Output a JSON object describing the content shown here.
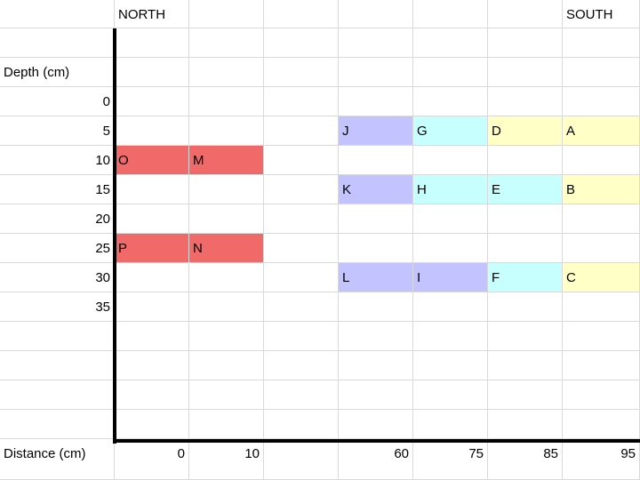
{
  "headers": {
    "north": "NORTH",
    "south": "SOUTH"
  },
  "depth_label": "Depth (cm)",
  "distance_label": "Distance (cm)",
  "depth_ticks": [
    "0",
    "5",
    "10",
    "15",
    "20",
    "25",
    "30",
    "35"
  ],
  "distance_ticks": [
    {
      "col": 2,
      "label": "0"
    },
    {
      "col": 3,
      "label": "10"
    },
    {
      "col": 5,
      "label": "60"
    },
    {
      "col": 6,
      "label": "75"
    },
    {
      "col": 7,
      "label": "85"
    },
    {
      "col": 8,
      "label": "95"
    }
  ],
  "colors": {
    "red": "#f06a6a",
    "purple": "#c3c3ff",
    "cyan": "#c7ffff",
    "yellow": "#ffffc6"
  },
  "fills": [
    {
      "row": 5,
      "col": 5,
      "color": "#c3c3ff"
    },
    {
      "row": 5,
      "col": 6,
      "color": "#c7ffff"
    },
    {
      "row": 5,
      "col": 7,
      "color": "#ffffc6"
    },
    {
      "row": 5,
      "col": 8,
      "color": "#ffffc6"
    },
    {
      "row": 6,
      "col": 2,
      "color": "#f06a6a"
    },
    {
      "row": 6,
      "col": 3,
      "color": "#f06a6a"
    },
    {
      "row": 7,
      "col": 5,
      "color": "#c3c3ff"
    },
    {
      "row": 7,
      "col": 6,
      "color": "#c7ffff"
    },
    {
      "row": 7,
      "col": 7,
      "color": "#c7ffff"
    },
    {
      "row": 7,
      "col": 8,
      "color": "#ffffc6"
    },
    {
      "row": 9,
      "col": 2,
      "color": "#f06a6a"
    },
    {
      "row": 9,
      "col": 3,
      "color": "#f06a6a"
    },
    {
      "row": 10,
      "col": 5,
      "color": "#c3c3ff"
    },
    {
      "row": 10,
      "col": 6,
      "color": "#c3c3ff"
    },
    {
      "row": 10,
      "col": 7,
      "color": "#c7ffff"
    },
    {
      "row": 10,
      "col": 8,
      "color": "#ffffc6"
    }
  ],
  "markers": [
    {
      "row": 5,
      "col": 5,
      "label": "J"
    },
    {
      "row": 5,
      "col": 6,
      "label": "G"
    },
    {
      "row": 5,
      "col": 7,
      "label": "D"
    },
    {
      "row": 5,
      "col": 8,
      "label": "A"
    },
    {
      "row": 6,
      "col": 2,
      "label": "O"
    },
    {
      "row": 6,
      "col": 3,
      "label": "M"
    },
    {
      "row": 7,
      "col": 5,
      "label": "K"
    },
    {
      "row": 7,
      "col": 6,
      "label": "H"
    },
    {
      "row": 7,
      "col": 7,
      "label": "E"
    },
    {
      "row": 7,
      "col": 8,
      "label": "B"
    },
    {
      "row": 9,
      "col": 2,
      "label": "P"
    },
    {
      "row": 9,
      "col": 3,
      "label": "N"
    },
    {
      "row": 10,
      "col": 5,
      "label": "L"
    },
    {
      "row": 10,
      "col": 6,
      "label": "I"
    },
    {
      "row": 10,
      "col": 7,
      "label": "F"
    },
    {
      "row": 10,
      "col": 8,
      "label": "C"
    }
  ]
}
